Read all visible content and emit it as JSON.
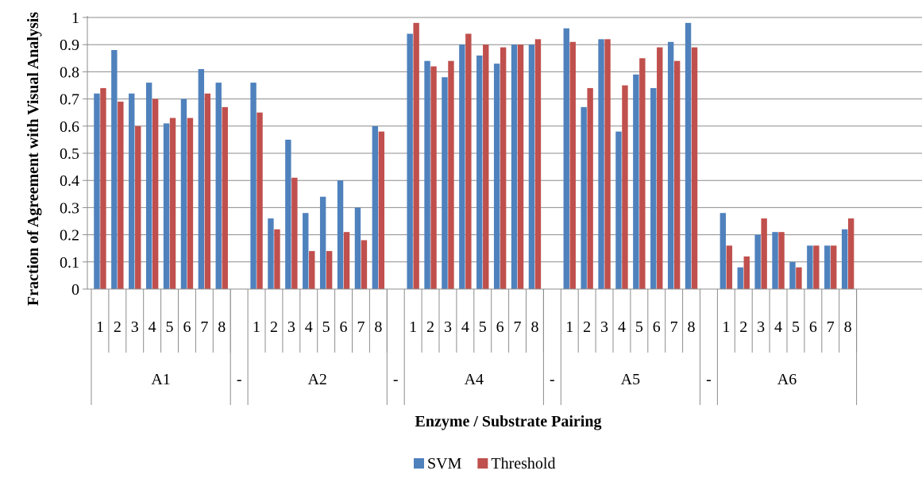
{
  "chart_data": {
    "type": "bar",
    "xlabel": "Enzyme / Substrate Pairing",
    "ylabel": "Fraction of Agreement with Visual Analysis",
    "ylim": [
      0,
      1
    ],
    "y_ticks": [
      "0",
      "0.1",
      "0.2",
      "0.3",
      "0.4",
      "0.5",
      "0.6",
      "0.7",
      "0.8",
      "0.9",
      "1"
    ],
    "grid": true,
    "legend_position": "bottom",
    "colors": {
      "SVM": "#4f81bd",
      "Threshold": "#c0504d"
    },
    "groups": [
      {
        "label": "A1",
        "categories": [
          "1",
          "2",
          "3",
          "4",
          "5",
          "6",
          "7",
          "8"
        ]
      },
      {
        "label": "-",
        "categories": [
          ""
        ]
      },
      {
        "label": "A2",
        "categories": [
          "1",
          "2",
          "3",
          "4",
          "5",
          "6",
          "7",
          "8"
        ]
      },
      {
        "label": "-",
        "categories": [
          ""
        ]
      },
      {
        "label": "A4",
        "categories": [
          "1",
          "2",
          "3",
          "4",
          "5",
          "6",
          "7",
          "8"
        ]
      },
      {
        "label": "-",
        "categories": [
          ""
        ]
      },
      {
        "label": "A5",
        "categories": [
          "1",
          "2",
          "3",
          "4",
          "5",
          "6",
          "7",
          "8"
        ]
      },
      {
        "label": "-",
        "categories": [
          ""
        ]
      },
      {
        "label": "A6",
        "categories": [
          "1",
          "2",
          "3",
          "4",
          "5",
          "6",
          "7",
          "8"
        ]
      }
    ],
    "series": [
      {
        "name": "SVM",
        "values": [
          [
            0.72,
            0.88,
            0.72,
            0.76,
            0.61,
            0.7,
            0.81,
            0.76
          ],
          [
            null
          ],
          [
            0.76,
            0.26,
            0.55,
            0.28,
            0.34,
            0.4,
            0.3,
            0.6
          ],
          [
            null
          ],
          [
            0.94,
            0.84,
            0.78,
            0.9,
            0.86,
            0.83,
            0.9,
            0.9
          ],
          [
            null
          ],
          [
            0.96,
            0.67,
            0.92,
            0.58,
            0.79,
            0.74,
            0.91,
            0.98
          ],
          [
            null
          ],
          [
            0.28,
            0.08,
            0.2,
            0.21,
            0.1,
            0.16,
            0.16,
            0.22
          ]
        ]
      },
      {
        "name": "Threshold",
        "values": [
          [
            0.74,
            0.69,
            0.6,
            0.7,
            0.63,
            0.63,
            0.72,
            0.67
          ],
          [
            null
          ],
          [
            0.65,
            0.22,
            0.41,
            0.14,
            0.14,
            0.21,
            0.18,
            0.58
          ],
          [
            null
          ],
          [
            0.98,
            0.82,
            0.84,
            0.94,
            0.9,
            0.89,
            0.9,
            0.92
          ],
          [
            null
          ],
          [
            0.91,
            0.74,
            0.92,
            0.75,
            0.85,
            0.89,
            0.84,
            0.89
          ],
          [
            null
          ],
          [
            0.16,
            0.12,
            0.26,
            0.21,
            0.08,
            0.16,
            0.16,
            0.26
          ]
        ]
      }
    ]
  }
}
